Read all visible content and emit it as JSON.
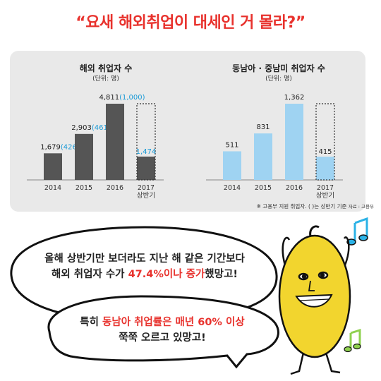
{
  "headline": "“요새 해외취업이 대세인 거 몰라?”",
  "note": "※ 고용부 지원 취업자. ( )는 상반기 기준",
  "source": "자료 : 고용부",
  "colors": {
    "headline": "#e8322d",
    "dark_bar": "#555555",
    "light_bar": "#9fd3f2",
    "half_label": "#1a9ad6",
    "accent_text": "#e8322d"
  },
  "chart_data": [
    {
      "type": "bar",
      "title": "해외 취업자 수",
      "subtitle": "(단위: 명)",
      "categories": [
        "2014",
        "2015",
        "2016",
        "2017 상반기"
      ],
      "values": [
        1679,
        2903,
        4811,
        1474
      ],
      "first_half_values": [
        426,
        461,
        1000,
        null
      ],
      "value_labels": [
        "1,679",
        "2,903",
        "4,811",
        "1,474"
      ],
      "first_half_labels": [
        "(426)",
        "(461)",
        "(1,000)",
        ""
      ],
      "ylim": [
        0,
        5500
      ]
    },
    {
      "type": "bar",
      "title": "동남아 · 중남미 취업자 수",
      "subtitle": "(단위: 명)",
      "categories": [
        "2014",
        "2015",
        "2016",
        "2017 상반기"
      ],
      "values": [
        511,
        831,
        1362,
        415
      ],
      "value_labels": [
        "511",
        "831",
        "1,362",
        "415"
      ],
      "ylim": [
        0,
        1560
      ]
    }
  ],
  "speech": {
    "line1": "올해 상반기만 보더라도 지난 해 같은 기간보다",
    "line2_a": "해외 취업자 수가 ",
    "line2_b": "47.4%이나 증가",
    "line2_c": "했망고!",
    "line3_a": "특히 ",
    "line3_b": "동남아 취업률은",
    "line3_c": " 매년 60% 이상",
    "line4": "쭉쭉 오르고 있망고!"
  }
}
